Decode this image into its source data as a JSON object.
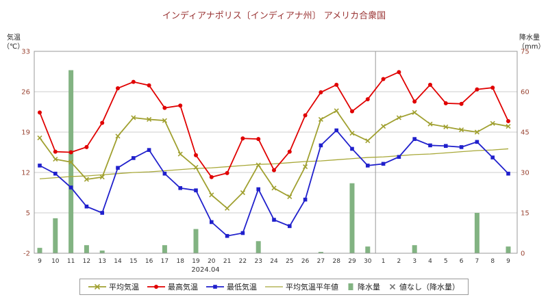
{
  "title": "インディアナポリス〔インディアナ州〕 アメリカ合衆国",
  "colors": {
    "title": "#993333",
    "tick": "#994433",
    "xtick": "#333333",
    "grid": "#cccccc",
    "axis": "#999999",
    "separator": "#999999",
    "avg": "#a0a030",
    "max": "#e00000",
    "min": "#2020cc",
    "normal": "#a8a838",
    "precip": "#82b382"
  },
  "left_axis": {
    "label_line1": "気温",
    "label_line2": "（℃）",
    "ticks": [
      33,
      26,
      19,
      12,
      5,
      -2
    ]
  },
  "right_axis": {
    "label_line1": "降水量",
    "label_line2": "（mm）",
    "ticks": [
      75,
      60,
      45,
      30,
      15,
      0
    ]
  },
  "x_axis": {
    "period_label": "2024.04",
    "month_boundary_after_index": 21
  },
  "legend": [
    {
      "label": "平均気温",
      "swatch": "line-cross",
      "color": "#a0a030"
    },
    {
      "label": "最高気温",
      "swatch": "line-circle",
      "color": "#e00000"
    },
    {
      "label": "最低気温",
      "swatch": "line-square",
      "color": "#2020cc"
    },
    {
      "label": "平均気温平年値",
      "swatch": "line",
      "color": "#a8a838"
    },
    {
      "label": "降水量",
      "swatch": "bar",
      "color": "#82b382"
    },
    {
      "label": "値なし（降水量）",
      "swatch": "cross",
      "color": "#777777"
    }
  ],
  "chart_data": {
    "type": "line+bar",
    "title": "インディアナポリス〔インディアナ州〕 アメリカ合衆国",
    "categories": [
      "9",
      "10",
      "11",
      "12",
      "13",
      "14",
      "15",
      "16",
      "17",
      "18",
      "19",
      "20",
      "21",
      "22",
      "23",
      "24",
      "25",
      "26",
      "27",
      "28",
      "29",
      "30",
      "1",
      "2",
      "3",
      "4",
      "5",
      "6",
      "7",
      "8",
      "9"
    ],
    "ylim_left": [
      -2,
      33
    ],
    "ylim_right": [
      0,
      75
    ],
    "series": [
      {
        "name": "平均気温平年値",
        "type": "line",
        "marker": "none",
        "color": "#a8a838",
        "values": [
          10.9,
          11.1,
          11.3,
          11.4,
          11.6,
          11.8,
          12.0,
          12.1,
          12.3,
          12.5,
          12.7,
          12.8,
          13.0,
          13.2,
          13.4,
          13.5,
          13.7,
          13.9,
          14.0,
          14.2,
          14.4,
          14.6,
          14.7,
          14.9,
          15.1,
          15.2,
          15.4,
          15.6,
          15.8,
          15.9,
          16.1
        ]
      },
      {
        "name": "平均気温",
        "type": "line",
        "marker": "cross",
        "color": "#a0a030",
        "values": [
          18.0,
          14.3,
          13.8,
          10.8,
          11.2,
          18.3,
          21.5,
          21.2,
          21.0,
          15.2,
          12.9,
          8.1,
          5.8,
          8.5,
          13.3,
          9.3,
          7.8,
          13.0,
          21.2,
          22.7,
          18.8,
          17.5,
          20.0,
          21.5,
          22.4,
          20.4,
          19.9,
          19.4,
          19.0,
          20.5,
          20.0
        ]
      },
      {
        "name": "最低気温",
        "type": "line",
        "marker": "square",
        "color": "#2020cc",
        "values": [
          13.2,
          11.8,
          9.4,
          6.1,
          5.0,
          12.8,
          14.5,
          15.9,
          11.8,
          9.3,
          8.9,
          3.4,
          1.0,
          1.5,
          9.1,
          3.8,
          2.7,
          7.3,
          16.7,
          19.3,
          16.1,
          13.2,
          13.5,
          14.7,
          17.8,
          16.7,
          16.6,
          16.4,
          17.3,
          14.6,
          11.8
        ]
      },
      {
        "name": "最高気温",
        "type": "line",
        "marker": "circle",
        "color": "#e00000",
        "values": [
          22.4,
          15.6,
          15.5,
          16.4,
          20.6,
          26.6,
          27.7,
          27.1,
          23.2,
          23.6,
          15.0,
          11.2,
          11.9,
          17.9,
          17.8,
          12.4,
          15.6,
          21.9,
          25.9,
          27.2,
          22.6,
          24.7,
          28.2,
          29.4,
          24.3,
          27.2,
          24.0,
          23.9,
          26.4,
          26.7,
          20.9
        ]
      },
      {
        "name": "降水量",
        "type": "bar",
        "axis": "right",
        "color": "#82b382",
        "values": [
          2,
          13,
          68,
          3,
          1,
          0,
          0,
          0,
          3,
          0,
          9,
          0,
          0,
          0,
          4.5,
          0,
          0,
          0,
          0.5,
          0,
          26,
          2.5,
          0,
          0,
          3,
          0,
          0,
          0,
          15,
          0,
          2.5
        ]
      }
    ]
  }
}
